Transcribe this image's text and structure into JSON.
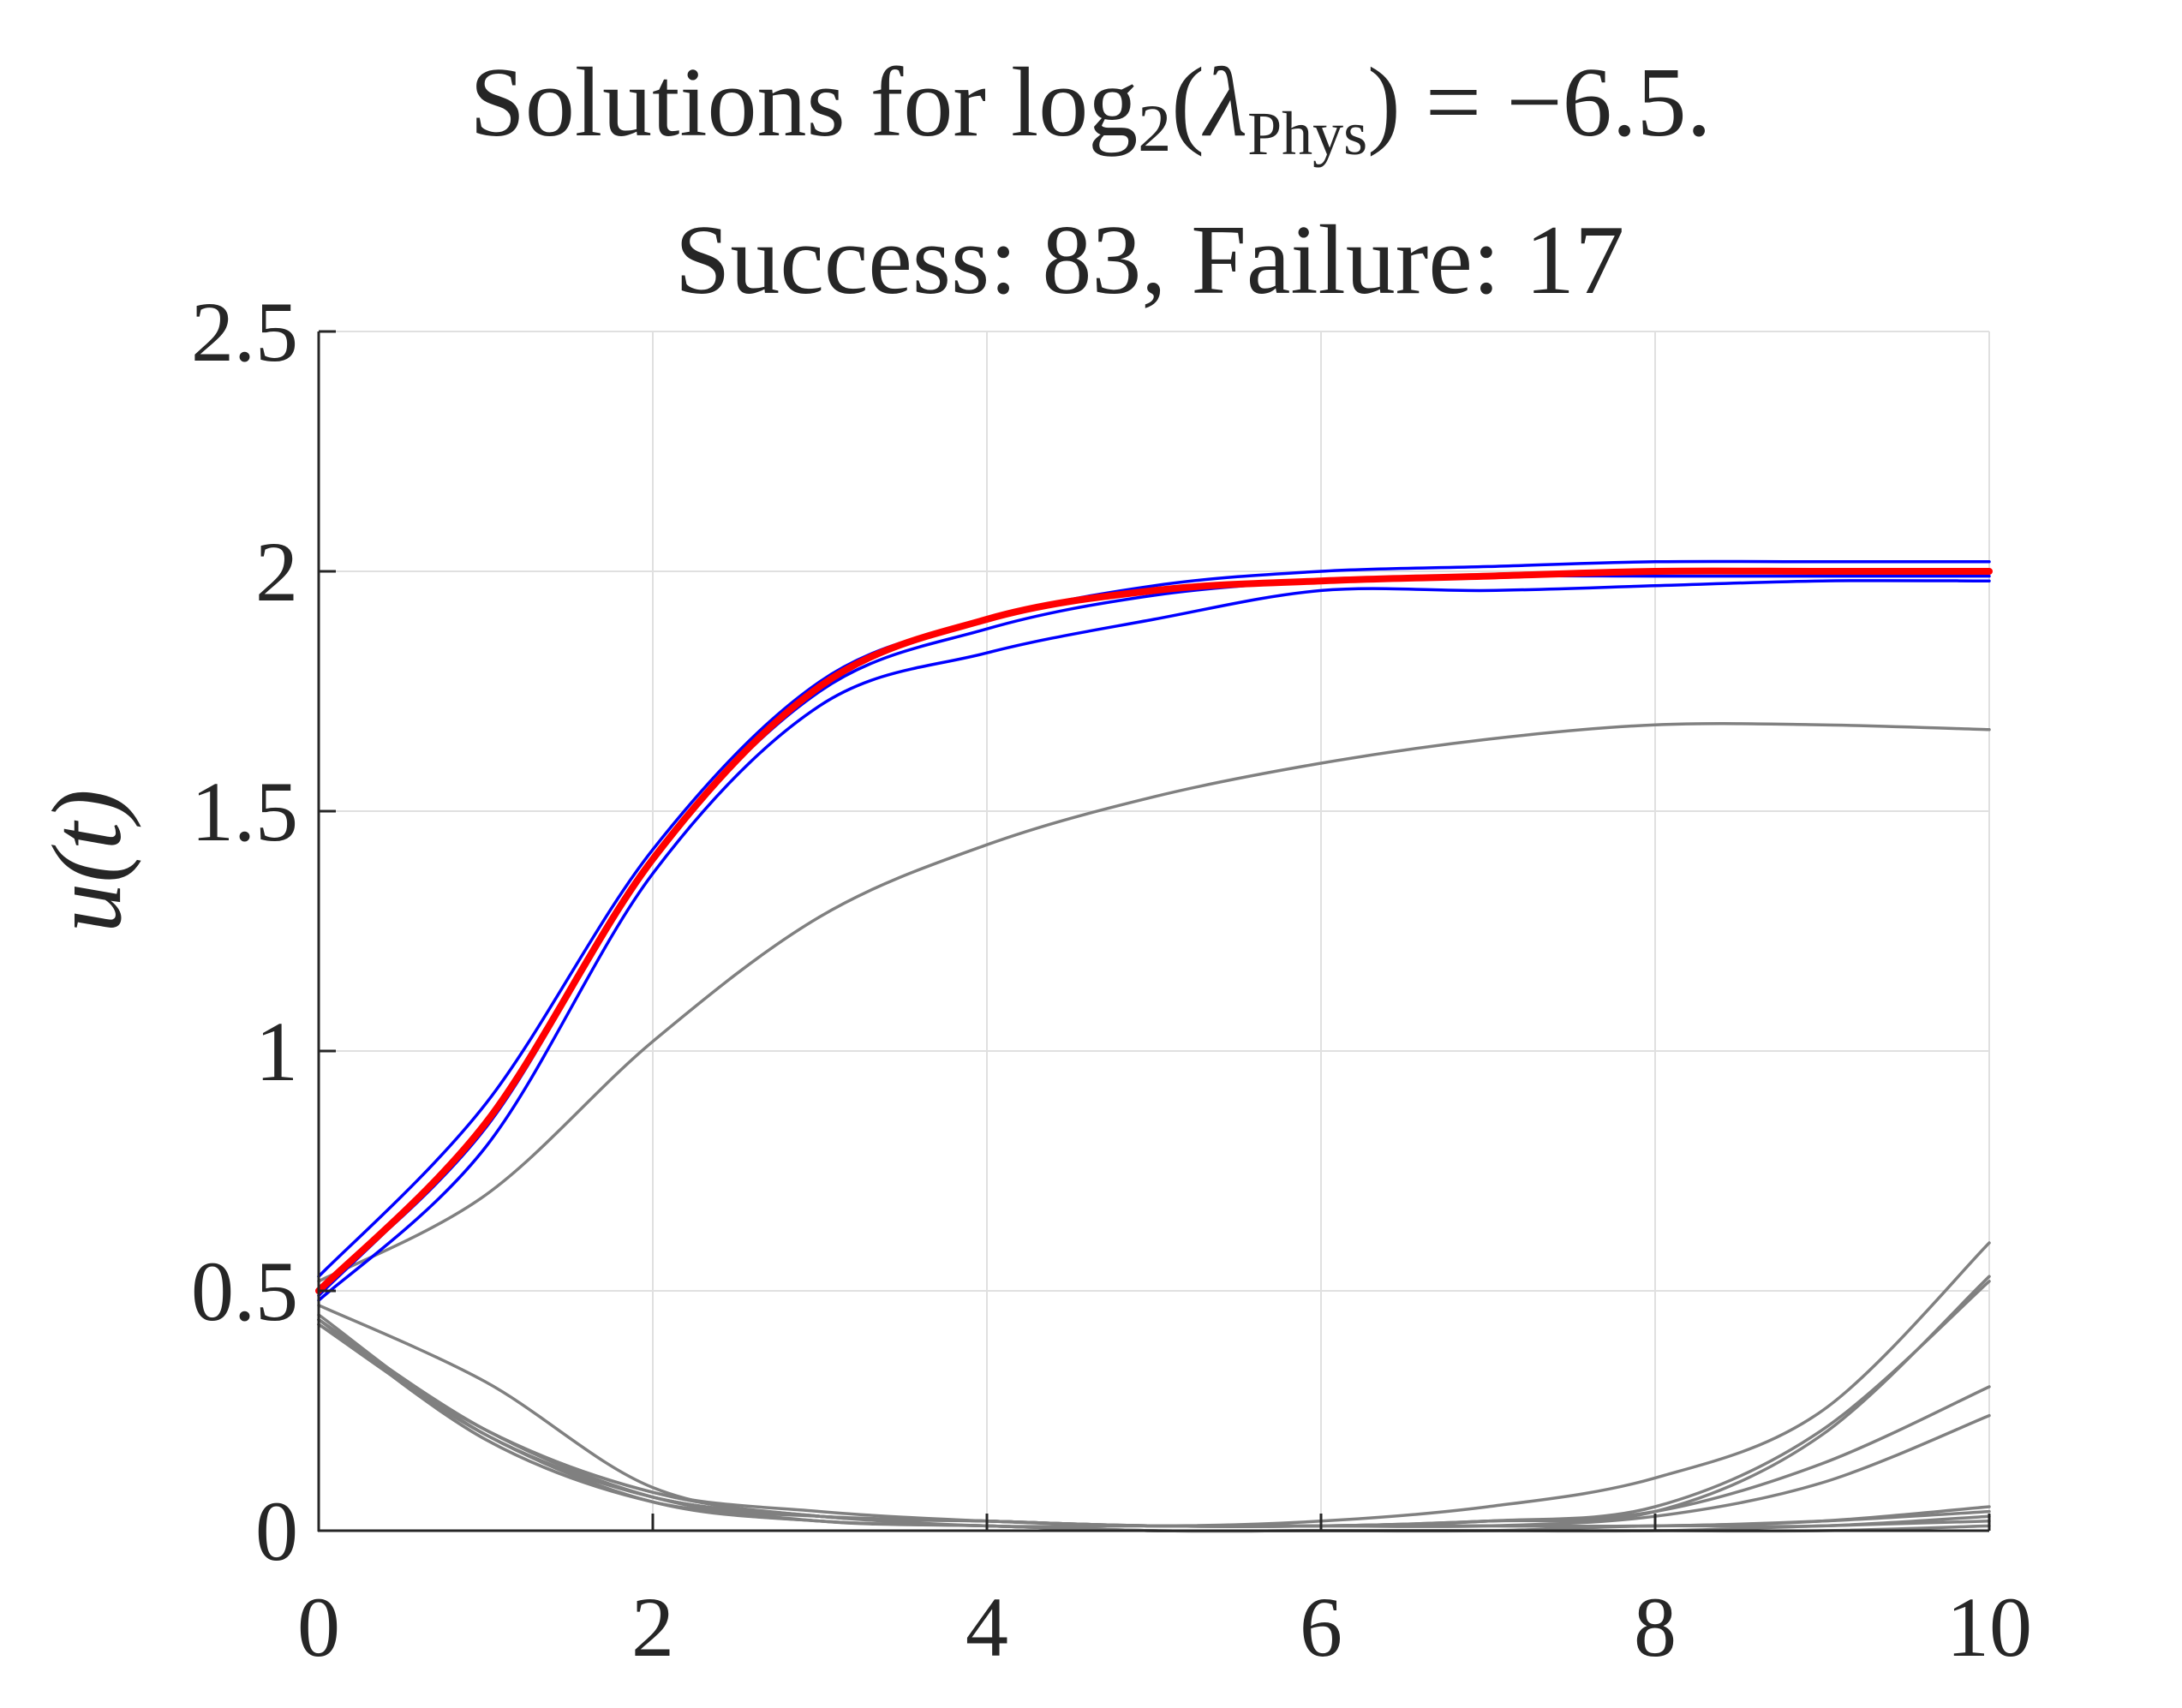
{
  "chart_data": {
    "type": "line",
    "title": {
      "prefix": "Solutions for ",
      "log": "log",
      "log_base": "2",
      "lambda": "λ",
      "lambda_sub": "Phys",
      "suffix": ") = −6.5.",
      "line2": "Success: 83, Failure: 17"
    },
    "xlabel": "",
    "ylabel": "u(t)",
    "xlim": [
      0,
      10
    ],
    "ylim": [
      0,
      2.5
    ],
    "xticks": [
      0,
      2,
      4,
      6,
      8,
      10
    ],
    "xtick_labels": [
      "0",
      "2",
      "4",
      "6",
      "8",
      "10"
    ],
    "yticks": [
      0,
      0.5,
      1,
      1.5,
      2,
      2.5
    ],
    "ytick_labels": [
      "0",
      "0.5",
      "1",
      "1.5",
      "2",
      "2.5"
    ],
    "grid": true,
    "colors": {
      "success": "#0000ff",
      "failure": "#808080",
      "reference": "#ff0000",
      "axis": "#262626",
      "grid": "#e0e0e0"
    },
    "x": [
      0,
      1,
      2,
      3,
      4,
      5,
      6,
      7,
      8,
      9,
      10
    ],
    "series": [
      {
        "role": "failure",
        "values": [
          0.52,
          0.7,
          1.02,
          1.28,
          1.43,
          1.53,
          1.6,
          1.65,
          1.68,
          1.68,
          1.67
        ]
      },
      {
        "role": "failure",
        "values": [
          0.47,
          0.31,
          0.09,
          0.03,
          0.02,
          0.01,
          0.02,
          0.05,
          0.11,
          0.25,
          0.6
        ]
      },
      {
        "role": "failure",
        "values": [
          0.45,
          0.2,
          0.07,
          0.03,
          0.02,
          0.01,
          0.01,
          0.02,
          0.05,
          0.21,
          0.52
        ]
      },
      {
        "role": "failure",
        "values": [
          0.44,
          0.19,
          0.06,
          0.03,
          0.02,
          0.01,
          0.01,
          0.02,
          0.04,
          0.2,
          0.53
        ]
      },
      {
        "role": "failure",
        "values": [
          0.44,
          0.21,
          0.08,
          0.03,
          0.02,
          0.01,
          0.01,
          0.02,
          0.04,
          0.14,
          0.3
        ]
      },
      {
        "role": "failure",
        "values": [
          0.43,
          0.21,
          0.08,
          0.04,
          0.02,
          0.01,
          0.01,
          0.01,
          0.03,
          0.1,
          0.24
        ]
      },
      {
        "role": "failure",
        "values": [
          0.44,
          0.2,
          0.07,
          0.03,
          0.02,
          0.01,
          0.01,
          0.01,
          0.01,
          0.02,
          0.05
        ]
      },
      {
        "role": "failure",
        "values": [
          0.43,
          0.2,
          0.07,
          0.03,
          0.01,
          0.01,
          0.01,
          0.01,
          0.01,
          0.02,
          0.04
        ]
      },
      {
        "role": "failure",
        "values": [
          0.44,
          0.19,
          0.06,
          0.02,
          0.01,
          0.0,
          0.0,
          0.0,
          0.01,
          0.01,
          0.03
        ]
      },
      {
        "role": "failure",
        "values": [
          0.43,
          0.2,
          0.06,
          0.02,
          0.01,
          0.0,
          0.0,
          0.0,
          0.0,
          0.01,
          0.02
        ]
      },
      {
        "role": "failure",
        "values": [
          0.44,
          0.21,
          0.07,
          0.02,
          0.01,
          0.0,
          0.0,
          0.0,
          0.0,
          0.0,
          0.01
        ]
      },
      {
        "role": "success",
        "values": [
          0.53,
          0.89,
          1.42,
          1.77,
          1.9,
          1.97,
          2.0,
          2.01,
          2.02,
          2.02,
          2.02
        ]
      },
      {
        "role": "success",
        "values": [
          0.49,
          0.85,
          1.4,
          1.75,
          1.88,
          1.95,
          1.98,
          1.99,
          1.99,
          1.99,
          1.99
        ]
      },
      {
        "role": "success",
        "values": [
          0.48,
          0.8,
          1.37,
          1.72,
          1.83,
          1.9,
          1.96,
          1.96,
          1.97,
          1.98,
          1.98
        ]
      },
      {
        "role": "success",
        "values": [
          0.5,
          0.84,
          1.4,
          1.76,
          1.9,
          1.96,
          1.98,
          1.99,
          2.0,
          2.0,
          2.0
        ]
      },
      {
        "role": "reference",
        "values": [
          0.5,
          0.85,
          1.4,
          1.76,
          1.9,
          1.96,
          1.98,
          1.99,
          2.0,
          2.0,
          2.0
        ]
      }
    ]
  }
}
